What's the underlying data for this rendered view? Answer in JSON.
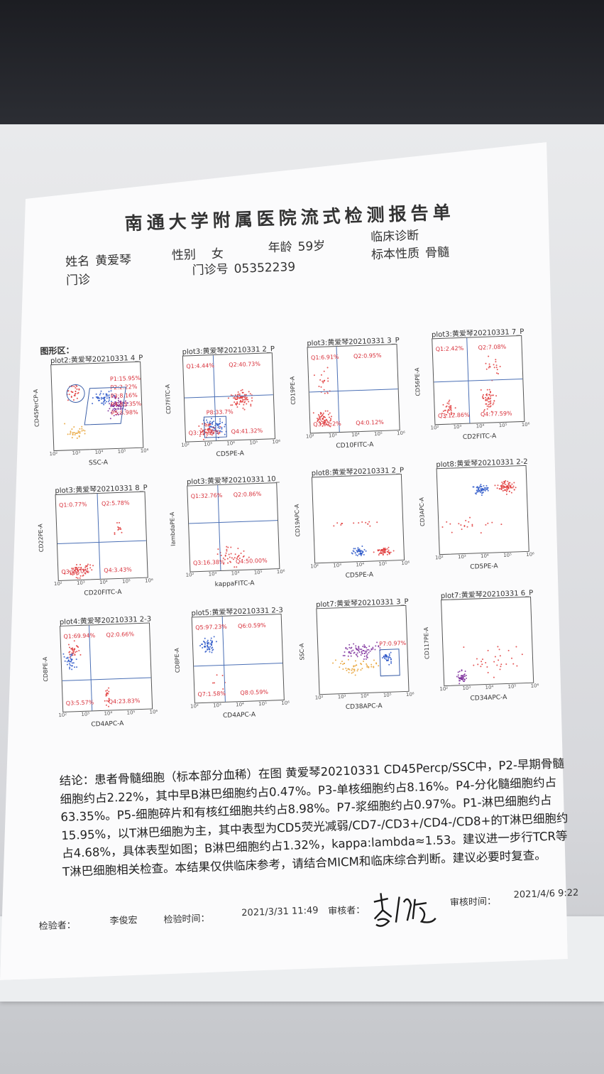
{
  "report": {
    "title": "南通大学附属医院流式检测报告单",
    "name_label": "姓名",
    "name": "黄爱琴",
    "gender_label": "性别",
    "gender": "女",
    "age_label": "年龄",
    "age": "59岁",
    "diagnosis_label": "临床诊断",
    "department": "门诊",
    "clinic_no_label": "门诊号",
    "clinic_no": "05352239",
    "specimen_label": "标本性质",
    "specimen": "骨髓",
    "section_label": "图形区："
  },
  "plots": [
    {
      "title": "plot2:黄爱琴20210331 4_P",
      "xlabel": "SSC-A",
      "ylabel": "CD45PerCP-A",
      "gates": [
        "P1:15.95%",
        "P2:2.22%",
        "P3:8.16%",
        "P4:63.35%",
        "P5:8.98%"
      ]
    },
    {
      "title": "plot3:黄爱琴20210331 2_P",
      "xlabel": "CD5PE-A",
      "ylabel": "CD7FITC-A",
      "quadrants": [
        "Q1:4.44%",
        "Q2:40.73%",
        "Q3:13.50%",
        "Q4:41.32%"
      ],
      "extra": "P8:33.7%"
    },
    {
      "title": "plot3:黄爱琴20210331 3_P",
      "xlabel": "CD10FITC-A",
      "ylabel": "CD19PE-A",
      "quadrants": [
        "Q1:6.91%",
        "Q2:0.95%",
        "Q3:92.2%",
        "Q4:0.12%"
      ]
    },
    {
      "title": "plot3:黄爱琴20210331 7_P",
      "xlabel": "CD2FITC-A",
      "ylabel": "CD56PE-A",
      "quadrants": [
        "Q1:2.42%",
        "Q2:7.08%",
        "Q3:12.86%",
        "Q4:77.59%"
      ]
    },
    {
      "title": "plot3:黄爱琴20210331 8_P",
      "xlabel": "CD20FITC-A",
      "ylabel": "CD22PE-A",
      "quadrants": [
        "Q1:0.77%",
        "Q2:5.78%",
        "Q3:90.0%",
        "Q4:3.43%"
      ]
    },
    {
      "title": "plot3:黄爱琴20210331 10_",
      "xlabel": "kappaFITC-A",
      "ylabel": "lambdaPE-A",
      "quadrants": [
        "Q1:32.76%",
        "Q2:0.86%",
        "Q3:16.38%",
        "Q4:50.00%"
      ]
    },
    {
      "title": "plot8:黄爱琴20210331 2_P",
      "xlabel": "CD5PE-A",
      "ylabel": "CD19APC-A",
      "quadrants": []
    },
    {
      "title": "plot8:黄爱琴20210331 2-2",
      "xlabel": "CD5PE-A",
      "ylabel": "CD3APC-A",
      "quadrants": []
    },
    {
      "title": "plot4:黄爱琴20210331 2-3",
      "xlabel": "CD4APC-A",
      "ylabel": "CD8PE-A",
      "quadrants": [
        "Q1:69.94%",
        "Q2:0.66%",
        "Q3:5.57%",
        "Q4:23.83%"
      ]
    },
    {
      "title": "plot5:黄爱琴20210331 2-3",
      "xlabel": "CD4APC-A",
      "ylabel": "CD8PE-A",
      "quadrants": [
        "Q5:97.23%",
        "Q6:0.59%",
        "Q7:1.58%",
        "Q8:0.59%"
      ]
    },
    {
      "title": "plot7:黄爱琴20210331 3_P",
      "xlabel": "CD38APC-A",
      "ylabel": "SSC-A",
      "gates": [
        "P7:0.97%"
      ]
    },
    {
      "title": "plot7:黄爱琴20210331 6_P",
      "xlabel": "CD34APC-A",
      "ylabel": "CD117PE-A",
      "quadrants": []
    }
  ],
  "axis_ticks": [
    "10²",
    "10³",
    "10⁴",
    "10⁵",
    "10⁶"
  ],
  "conclusion": "结论：患者骨髓细胞（标本部分血稀）在图 黄爱琴20210331 CD45Percp/SSC中，P2-早期骨髓细胞约占2.22%，其中早B淋巴细胞约占0.47%。P3-单核细胞约占8.16%。P4-分化髓细胞约占63.35%。P5-细胞碎片和有核红细胞共约占8.98%。P7-浆细胞约占0.97%。P1-淋巴细胞约占15.95%，以T淋巴细胞为主，其中表型为CD5荧光减弱/CD7-/CD3+/CD4-/CD8+的T淋巴细胞约占4.68%，具体表型如图；B淋巴细胞约占1.32%，kappa:lambda≈1.53。建议进一步行TCR等T淋巴细胞相关检查。本结果仅供临床参考，请结合MICM和临床综合判断。建议必要时复查。",
  "footer": {
    "tester_label": "检验者：",
    "tester": "李俊宏",
    "test_time_label": "检验时间：",
    "test_time": "2021/3/31 11:49",
    "reviewer_label": "审核者：",
    "review_time_label": "审核时间：",
    "review_time": "2021/4/6 9:22"
  },
  "colors": {
    "quadrant_text": "#d8323c",
    "gate_line": "#4a6fb5",
    "dot_red": "#e03a3a",
    "dot_blue": "#2a56c8",
    "dot_purple": "#7a2a9a",
    "dot_orange": "#e8a030"
  }
}
